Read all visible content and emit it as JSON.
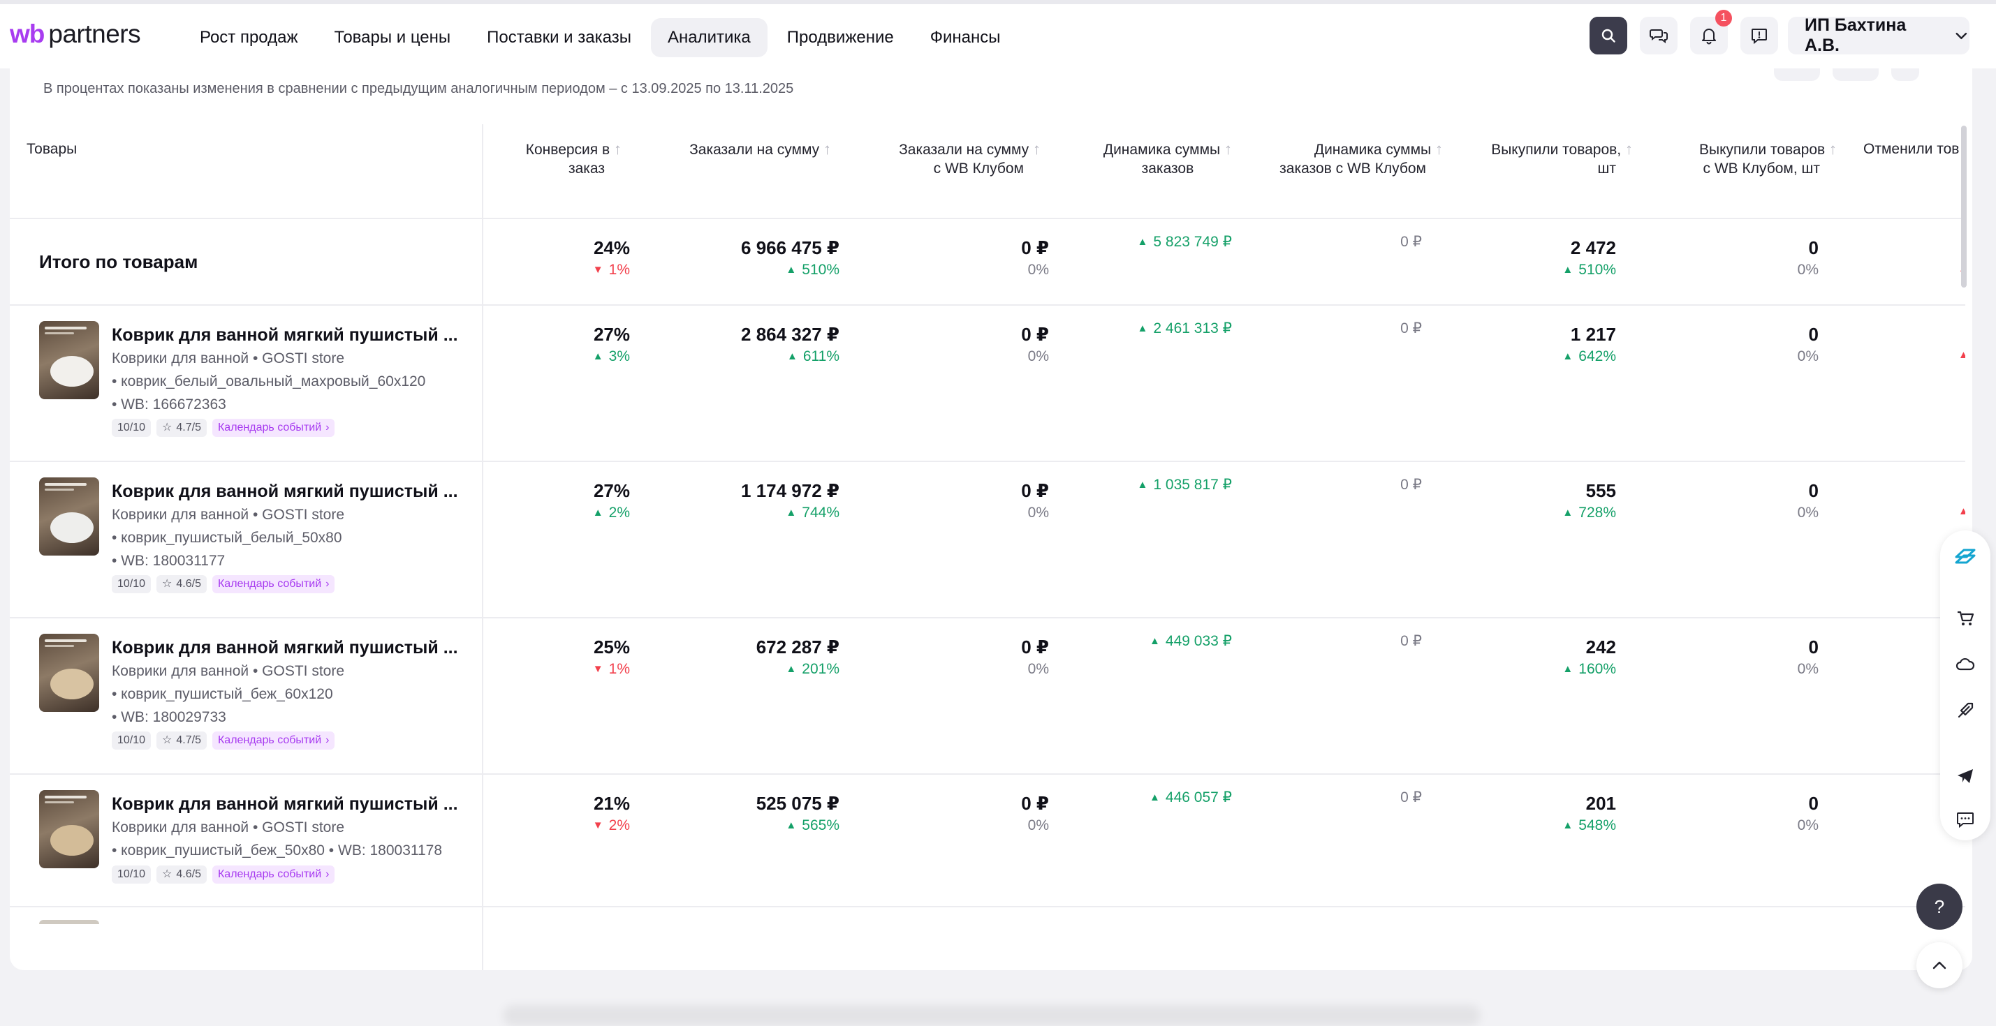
{
  "header": {
    "logo_wb": "wb",
    "logo_partners": "partners",
    "nav": [
      "Рост продаж",
      "Товары и цены",
      "Поставки и заказы",
      "Аналитика",
      "Продвижение",
      "Финансы"
    ],
    "notifications_count": "1",
    "user_name": "ИП Бахтина А.В."
  },
  "hint": "В процентах показаны изменения в сравнении с предыдущим аналогичным периодом – с 13.09.2025 по 13.11.2025",
  "table": {
    "col_products": "Товары",
    "columns": [
      {
        "line1": "Конверсия в",
        "line2": "заказ"
      },
      {
        "line1": "Заказали на сумму",
        "line2": ""
      },
      {
        "line1": "Заказали на сумму",
        "line2": "с WB Клубом"
      },
      {
        "line1": "Динамика суммы",
        "line2": "заказов"
      },
      {
        "line1": "Динамика суммы",
        "line2": "заказов с WB Клубом"
      },
      {
        "line1": "Выкупили товаров,",
        "line2": "шт"
      },
      {
        "line1": "Выкупили товаров",
        "line2": "с WB Клубом, шт"
      },
      {
        "line1": "Отменили тов",
        "line2": ""
      }
    ],
    "total": {
      "label": "Итого по товарам",
      "conv": "24%",
      "conv_delta": "1%",
      "sum": "6 966 475 ₽",
      "sum_delta": "510%",
      "club": "0 ₽",
      "club_delta": "0%",
      "dyn": "5 823 749 ₽",
      "dyn_club": "0 ₽",
      "bought": "2 472",
      "bought_delta": "510%",
      "bought_club": "0",
      "bought_club_delta": "0%"
    },
    "rows": [
      {
        "name": "Коврик для ванной мягкий пушистый ...",
        "category": "Коврики для ванной • GOSTI store",
        "article": "• коврик_белый_овальный_махровый_60х120",
        "wb": "• WB: 166672363",
        "score": "10/10",
        "rating": "4.7/5",
        "calendar": "Календарь событий",
        "conv": "27%",
        "conv_delta": "3%",
        "sum": "2 864 327 ₽",
        "sum_delta": "611%",
        "club": "0 ₽",
        "club_delta": "0%",
        "dyn": "2 461 313 ₽",
        "dyn_club": "0 ₽",
        "bought": "1 217",
        "bought_delta": "642%",
        "bought_club": "0",
        "bought_club_delta": "0%"
      },
      {
        "name": "Коврик для ванной мягкий пушистый ...",
        "category": "Коврики для ванной • GOSTI store",
        "article": "• коврик_пушистый_белый_50х80",
        "wb": "• WB: 180031177",
        "score": "10/10",
        "rating": "4.6/5",
        "calendar": "Календарь событий",
        "conv": "27%",
        "conv_delta": "2%",
        "sum": "1 174 972 ₽",
        "sum_delta": "744%",
        "club": "0 ₽",
        "club_delta": "0%",
        "dyn": "1 035 817 ₽",
        "dyn_club": "0 ₽",
        "bought": "555",
        "bought_delta": "728%",
        "bought_club": "0",
        "bought_club_delta": "0%"
      },
      {
        "name": "Коврик для ванной мягкий пушистый ...",
        "category": "Коврики для ванной • GOSTI store",
        "article": "• коврик_пушистый_беж_60х120",
        "wb": "• WB: 180029733",
        "score": "10/10",
        "rating": "4.7/5",
        "calendar": "Календарь событий",
        "conv": "25%",
        "conv_delta": "1%",
        "sum": "672 287 ₽",
        "sum_delta": "201%",
        "club": "0 ₽",
        "club_delta": "0%",
        "dyn": "449 033 ₽",
        "dyn_club": "0 ₽",
        "bought": "242",
        "bought_delta": "160%",
        "bought_club": "0",
        "bought_club_delta": "0%"
      },
      {
        "name": "Коврик для ванной мягкий пушистый ...",
        "category": "Коврики для ванной • GOSTI store",
        "article": "• коврик_пушистый_беж_50х80 • WB: 180031178",
        "wb": "",
        "score": "10/10",
        "rating": "4.6/5",
        "calendar": "Календарь событий",
        "conv": "21%",
        "conv_delta": "2%",
        "sum": "525 075 ₽",
        "sum_delta": "565%",
        "club": "0 ₽",
        "club_delta": "0%",
        "dyn": "446 057 ₽",
        "dyn_club": "0 ₽",
        "bought": "201",
        "bought_delta": "548%",
        "bought_club": "0",
        "bought_club_delta": "0%"
      }
    ]
  },
  "floating": {
    "help": "?"
  },
  "colors": {
    "accent": "#a83cf0",
    "up": "#14a068",
    "down": "#f2404c"
  }
}
